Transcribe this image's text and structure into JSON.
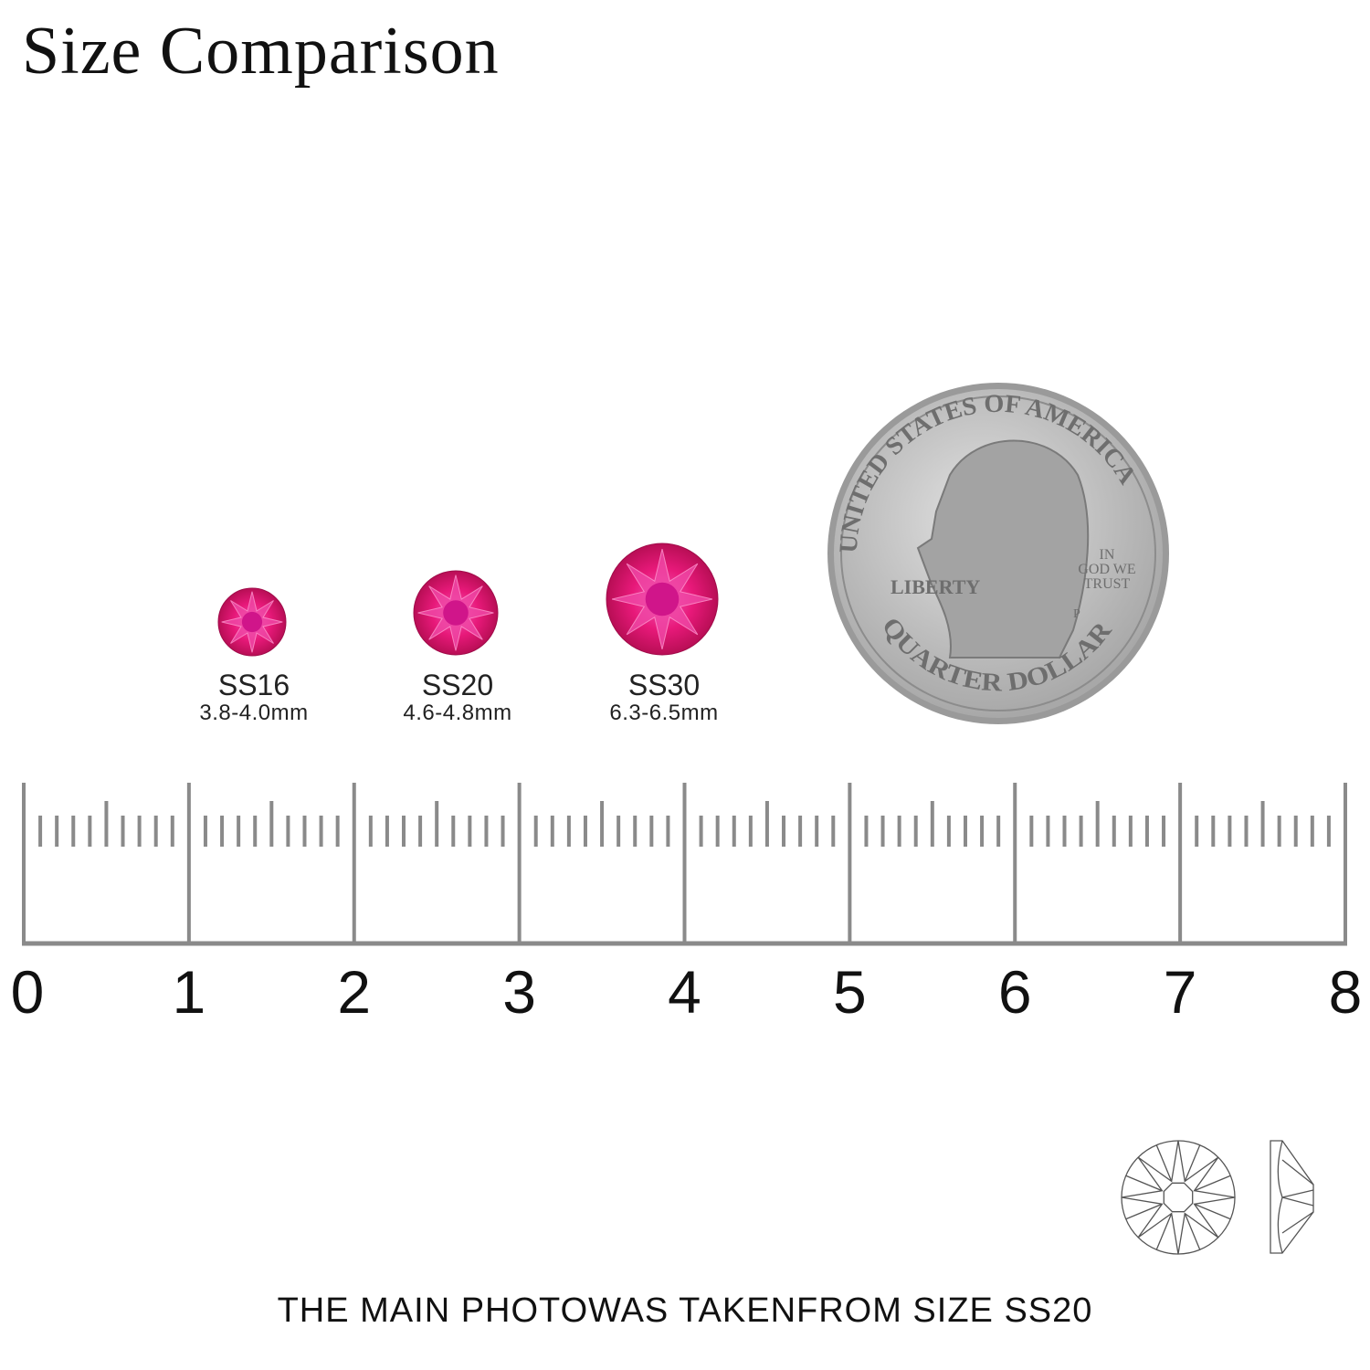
{
  "title": "Size Comparison",
  "gems": [
    {
      "size": "SS16",
      "dimensions": "3.8-4.0mm"
    },
    {
      "size": "SS20",
      "dimensions": "4.6-4.8mm"
    },
    {
      "size": "SS30",
      "dimensions": "6.3-6.5mm"
    }
  ],
  "coin": {
    "top_text": "UNITED STATES OF AMERICA",
    "motto": "IN GOD WE TRUST",
    "liberty": "LIBERTY",
    "bottom_text": "QUARTER DOLLAR",
    "mint": "P"
  },
  "ruler": {
    "labels": [
      "0",
      "1",
      "2",
      "3",
      "4",
      "5",
      "6",
      "7",
      "8"
    ],
    "subdivisions": 10
  },
  "footnote": "THE MAIN PHOTOWAS TAKENFROM SIZE SS20",
  "colors": {
    "gem": "#e8197a",
    "ruler": "#8a8a8a",
    "coin": "#b9b9b9"
  }
}
